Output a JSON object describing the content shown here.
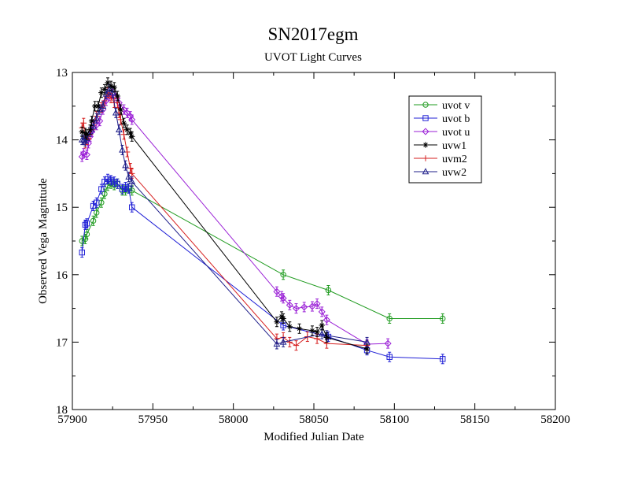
{
  "chart_data": {
    "type": "scatter",
    "title": "SN2017egm",
    "subtitle": "UVOT Light Curves",
    "xlabel": "Modified Julian Date",
    "ylabel": "Observed Vega Magnitude",
    "xlim": [
      57900,
      58200
    ],
    "ylim": [
      18,
      13
    ],
    "y_inverted": true,
    "x_ticks": [
      57900,
      57950,
      58000,
      58050,
      58100,
      58150,
      58200
    ],
    "x_tick_labels": [
      "57900",
      "57950",
      "58000",
      "58050",
      "58100",
      "58150",
      "58200"
    ],
    "y_ticks": [
      13,
      14,
      15,
      16,
      17,
      18
    ],
    "y_tick_labels": [
      "13",
      "14",
      "15",
      "16",
      "17",
      "18"
    ],
    "grid": false,
    "legend_position": "top-right",
    "series": [
      {
        "name": "uvot v",
        "color": "#1f9b1f",
        "marker": "circle",
        "x": [
          57906,
          57908,
          57909,
          57913,
          57915,
          57918,
          57920,
          57922,
          57924,
          57926,
          57928,
          57931,
          57933,
          57935,
          57937,
          58031,
          58059,
          58097,
          58130
        ],
        "y": [
          15.5,
          15.47,
          15.4,
          15.2,
          15.08,
          14.93,
          14.8,
          14.68,
          14.65,
          14.67,
          14.65,
          14.75,
          14.75,
          14.72,
          14.75,
          16.0,
          16.23,
          16.65,
          16.65
        ]
      },
      {
        "name": "uvot b",
        "color": "#1f1fd6",
        "marker": "square",
        "x": [
          57906,
          57908,
          57909,
          57913,
          57915,
          57918,
          57920,
          57922,
          57924,
          57926,
          57928,
          57931,
          57933,
          57935,
          57937,
          58031,
          58059,
          58083,
          58097,
          58130
        ],
        "y": [
          15.67,
          15.26,
          15.24,
          14.98,
          14.93,
          14.73,
          14.62,
          14.58,
          14.6,
          14.62,
          14.65,
          14.73,
          14.7,
          14.72,
          15.0,
          16.75,
          16.92,
          17.12,
          17.22,
          17.25
        ]
      },
      {
        "name": "uvot u",
        "color": "#9a1fd6",
        "marker": "diamond",
        "x": [
          57906,
          57907,
          57909,
          57910,
          57911,
          57912,
          57913,
          57915,
          57917,
          57919,
          57921,
          57923,
          57925,
          57927,
          57929,
          57932,
          57934,
          57936,
          57937,
          58027,
          58030,
          58031,
          58035,
          58039,
          58044,
          58049,
          58052,
          58055,
          58058,
          58083,
          58096
        ],
        "y": [
          14.25,
          14.2,
          14.22,
          14.05,
          13.95,
          13.88,
          13.82,
          13.78,
          13.72,
          13.55,
          13.42,
          13.35,
          13.32,
          13.35,
          13.45,
          13.55,
          13.6,
          13.65,
          13.7,
          16.25,
          16.32,
          16.35,
          16.45,
          16.5,
          16.48,
          16.47,
          16.43,
          16.55,
          16.67,
          17.03,
          17.02
        ]
      },
      {
        "name": "uvw1",
        "color": "#000000",
        "marker": "star",
        "x": [
          57906,
          57908,
          57909,
          57911,
          57912,
          57914,
          57916,
          57918,
          57920,
          57922,
          57924,
          57926,
          57928,
          57930,
          57932,
          57934,
          57936,
          57937,
          58027,
          58030,
          58031,
          58035,
          58041,
          58049,
          58052,
          58055,
          58058,
          58083
        ],
        "y": [
          13.88,
          13.9,
          13.92,
          13.85,
          13.72,
          13.5,
          13.5,
          13.3,
          13.25,
          13.15,
          13.2,
          13.22,
          13.35,
          13.55,
          13.75,
          13.85,
          13.9,
          13.95,
          16.7,
          16.62,
          16.65,
          16.77,
          16.8,
          16.83,
          16.85,
          16.75,
          16.93,
          17.1
        ]
      },
      {
        "name": "uvm2",
        "color": "#d61f1f",
        "marker": "plus",
        "x": [
          57906,
          57907,
          57908,
          57909,
          57911,
          57913,
          57915,
          57918,
          57920,
          57922,
          57924,
          57926,
          57928,
          57929,
          57930,
          57932,
          57934,
          57936,
          57937,
          58027,
          58031,
          58035,
          58039,
          58046,
          58052,
          58058,
          58083
        ],
        "y": [
          13.82,
          13.75,
          14.05,
          14.0,
          13.92,
          13.78,
          13.65,
          13.52,
          13.42,
          13.3,
          13.38,
          13.45,
          13.45,
          13.6,
          13.7,
          13.92,
          14.18,
          14.42,
          14.5,
          16.95,
          16.93,
          17.0,
          17.05,
          16.92,
          16.95,
          17.02,
          17.05
        ]
      },
      {
        "name": "uvw2",
        "color": "#1f1f8a",
        "marker": "triangle",
        "x": [
          57906,
          57907,
          57908,
          57909,
          57911,
          57913,
          57915,
          57917,
          57919,
          57921,
          57923,
          57925,
          57927,
          57929,
          57931,
          57933,
          57935,
          57937,
          58027,
          58031,
          58055,
          58058,
          58083
        ],
        "y": [
          14.0,
          14.0,
          14.02,
          13.98,
          13.88,
          13.8,
          13.68,
          13.55,
          13.5,
          13.32,
          13.25,
          13.3,
          13.6,
          13.85,
          14.15,
          14.38,
          14.55,
          14.62,
          17.03,
          17.0,
          16.88,
          16.9,
          17.0
        ]
      }
    ]
  }
}
